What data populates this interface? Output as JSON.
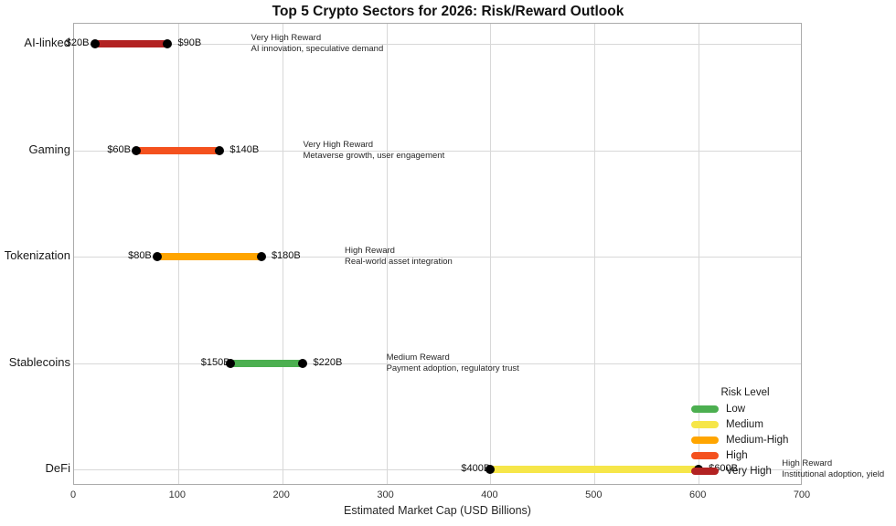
{
  "chart_data": {
    "type": "dumbbell",
    "title": "Top 5 Crypto Sectors for 2026: Risk/Reward Outlook",
    "xlabel": "Estimated Market Cap (USD Billions)",
    "xlim": [
      0,
      700
    ],
    "xticks": [
      0,
      100,
      200,
      300,
      400,
      500,
      600,
      700
    ],
    "grid": "on",
    "marker_color": "#000000",
    "annotation_x_offset": 80,
    "categories": [
      "AI-linked",
      "Gaming",
      "Tokenization",
      "Stablecoins",
      "DeFi"
    ],
    "rows": [
      {
        "sector": "AI-linked",
        "start": 20,
        "end": 90,
        "start_label": "$20B",
        "end_label": "$90B",
        "risk_level": "Very High",
        "color": "#B22222",
        "reward": "Very High Reward",
        "driver": "AI innovation, speculative demand"
      },
      {
        "sector": "Gaming",
        "start": 60,
        "end": 140,
        "start_label": "$60B",
        "end_label": "$140B",
        "risk_level": "High",
        "color": "#F4511E",
        "reward": "Very High Reward",
        "driver": "Metaverse growth, user engagement"
      },
      {
        "sector": "Tokenization",
        "start": 80,
        "end": 180,
        "start_label": "$80B",
        "end_label": "$180B",
        "risk_level": "Medium-High",
        "color": "#FFA500",
        "reward": "High Reward",
        "driver": "Real-world asset integration"
      },
      {
        "sector": "Stablecoins",
        "start": 150,
        "end": 220,
        "start_label": "$150B",
        "end_label": "$220B",
        "risk_level": "Low",
        "color": "#4CAF50",
        "reward": "Medium Reward",
        "driver": "Payment adoption, regulatory trust"
      },
      {
        "sector": "DeFi",
        "start": 400,
        "end": 600,
        "start_label": "$400B",
        "end_label": "$600B",
        "risk_level": "Medium",
        "color": "#F6E649",
        "reward": "High Reward",
        "driver": "Institutional adoption, yield"
      }
    ],
    "legend": {
      "title": "Risk Level",
      "position": "lower right",
      "entries": [
        {
          "label": "Low",
          "color": "#4CAF50"
        },
        {
          "label": "Medium",
          "color": "#F6E649"
        },
        {
          "label": "Medium-High",
          "color": "#FFA500"
        },
        {
          "label": "High",
          "color": "#F4511E"
        },
        {
          "label": "Very High",
          "color": "#B22222"
        }
      ]
    }
  }
}
